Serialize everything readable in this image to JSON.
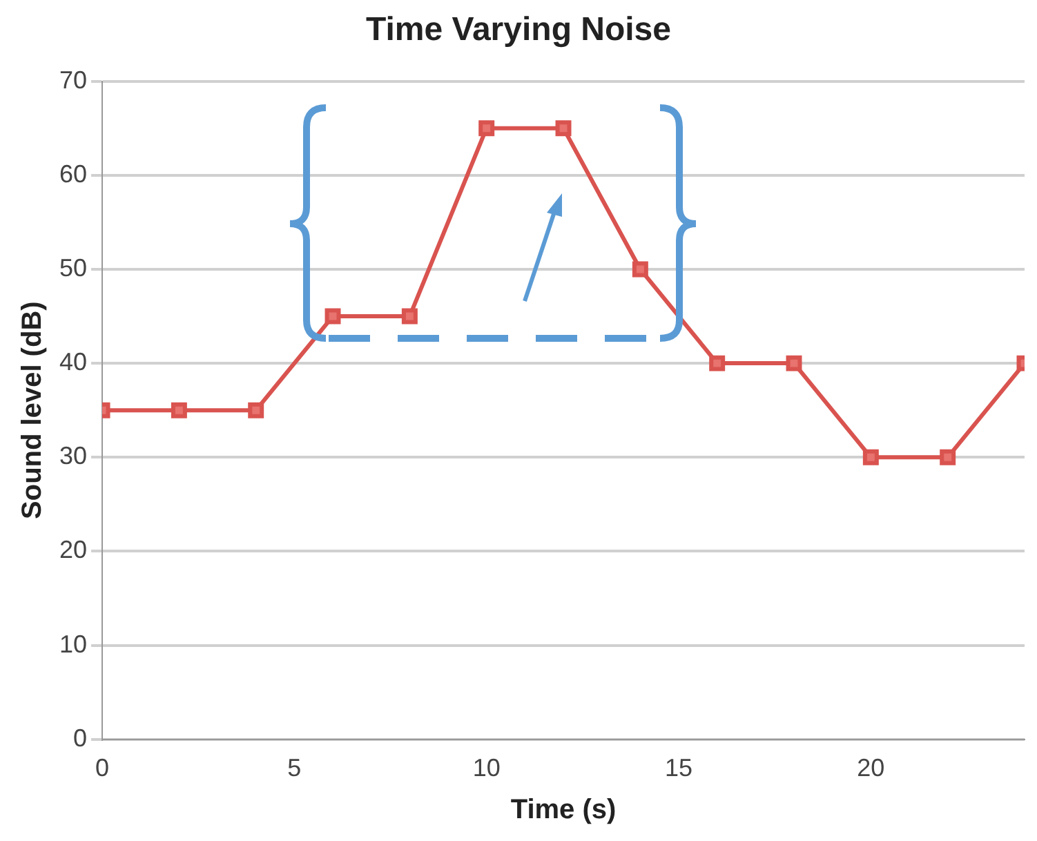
{
  "chart_data": {
    "type": "line",
    "title": "Time Varying Noise",
    "xlabel": "Time (s)",
    "ylabel": "Sound level (dB)",
    "x": [
      0,
      2,
      4,
      6,
      8,
      10,
      12,
      14,
      16,
      18,
      20,
      22,
      24
    ],
    "series": [
      {
        "color": "#d9534f",
        "values": [
          35,
          35,
          35,
          45,
          45,
          65,
          65,
          50,
          40,
          40,
          30,
          30,
          40
        ]
      }
    ],
    "xlim": [
      0,
      24
    ],
    "xticks": [
      0,
      5,
      10,
      15,
      20
    ],
    "ylim": [
      0,
      70
    ],
    "yticks": [
      0,
      10,
      20,
      30,
      40,
      50,
      60,
      70
    ],
    "grid": "y",
    "legend": false,
    "marker": "square",
    "line_style": "solid"
  }
}
